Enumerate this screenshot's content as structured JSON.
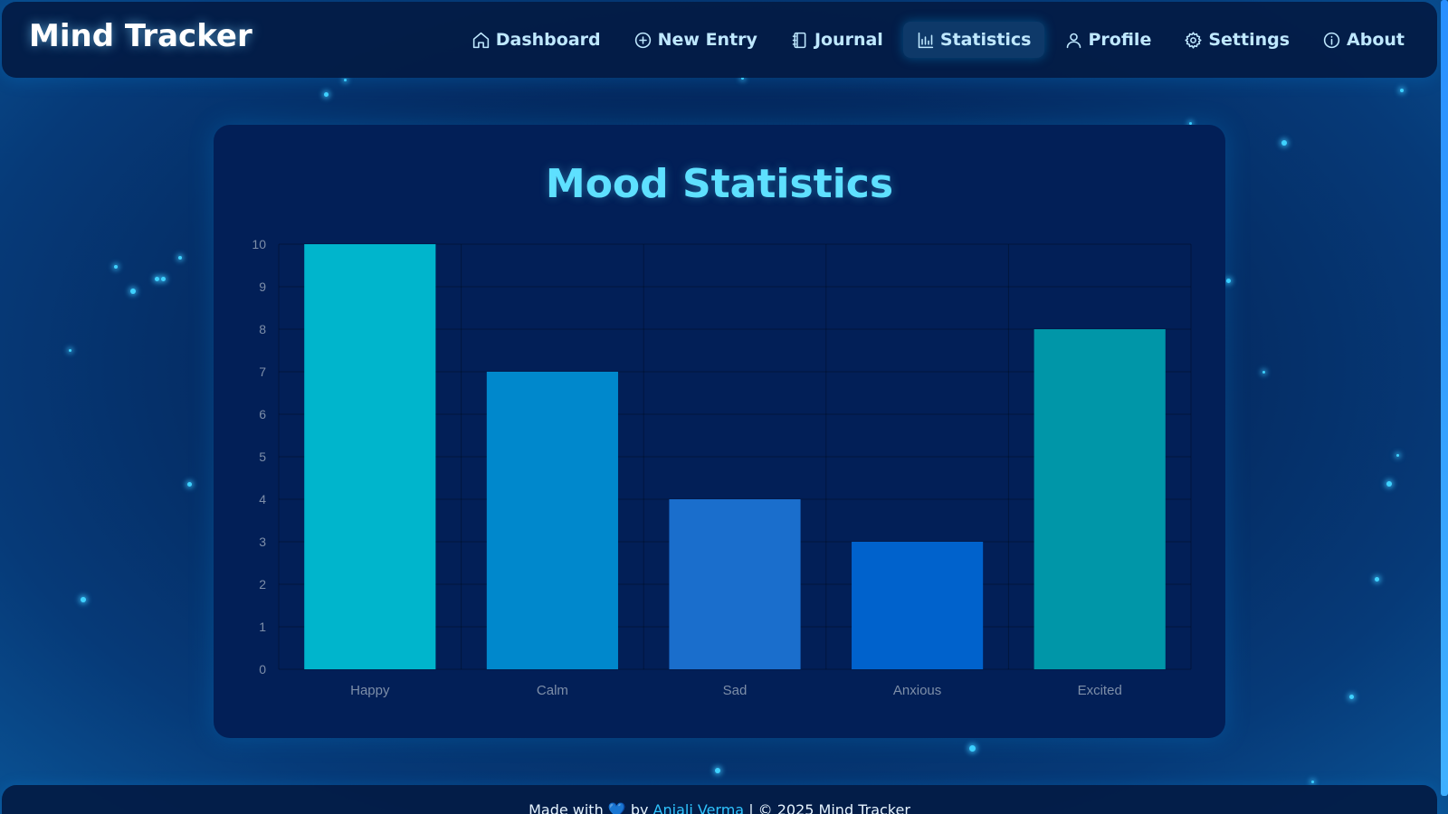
{
  "app": {
    "brand": "Mind Tracker"
  },
  "nav": {
    "items": [
      {
        "label": "Dashboard",
        "icon": "home-icon",
        "active": false
      },
      {
        "label": "New Entry",
        "icon": "plus-circle-icon",
        "active": false
      },
      {
        "label": "Journal",
        "icon": "notebook-icon",
        "active": false
      },
      {
        "label": "Statistics",
        "icon": "bar-chart-icon",
        "active": true
      },
      {
        "label": "Profile",
        "icon": "user-icon",
        "active": false
      },
      {
        "label": "Settings",
        "icon": "gear-icon",
        "active": false
      },
      {
        "label": "About",
        "icon": "info-icon",
        "active": false
      }
    ]
  },
  "card": {
    "title": "Mood Statistics"
  },
  "chart_data": {
    "type": "bar",
    "title": "",
    "xlabel": "",
    "ylabel": "",
    "categories": [
      "Happy",
      "Calm",
      "Sad",
      "Anxious",
      "Excited"
    ],
    "values": [
      10,
      7,
      4,
      3,
      8
    ],
    "colors": [
      "#00b5cc",
      "#0088cc",
      "#1a6ecc",
      "#0062cc",
      "#0096a8"
    ],
    "ylim": [
      0,
      10
    ],
    "yticks": [
      "0",
      "1",
      "2",
      "3",
      "4",
      "5",
      "6",
      "7",
      "8",
      "9",
      "10"
    ],
    "grid": true,
    "legend": "none"
  },
  "footer": {
    "prefix": "Made with",
    "heart": "💙",
    "by": "by",
    "author": "Anjali Verma",
    "suffix": "| © 2025 Mind Tracker"
  }
}
